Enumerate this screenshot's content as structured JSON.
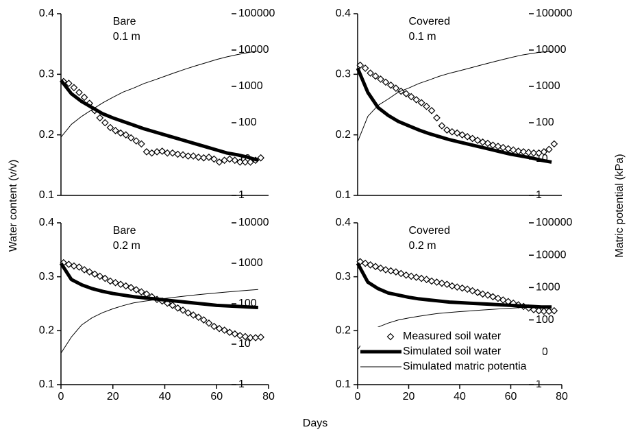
{
  "ylabel": "Water content (v/v)",
  "y2label": "Matric potential (kPa)",
  "xlabel": "Days",
  "chart_data": [
    {
      "type": "line",
      "annotations": [
        "Bare",
        "0.1 m"
      ],
      "xlim": [
        0,
        80
      ],
      "ylim": [
        0.1,
        0.4
      ],
      "yticks": [
        0.1,
        0.2,
        0.3,
        0.4
      ],
      "y2lim": [
        1,
        100000
      ],
      "y2ticks": [
        1,
        10,
        100,
        1000,
        10000,
        100000
      ],
      "y2log": true,
      "series": [
        {
          "color": "#000000",
          "marker": "diamond",
          "x": [
            1,
            3,
            5,
            7,
            9,
            11,
            13,
            15,
            17,
            19,
            21,
            23,
            25,
            27,
            29,
            31,
            33,
            35,
            37,
            39,
            41,
            43,
            45,
            47,
            49,
            51,
            53,
            55,
            57,
            59,
            61,
            63,
            65,
            67,
            69,
            71,
            73,
            75,
            77
          ],
          "values": [
            0.288,
            0.285,
            0.278,
            0.27,
            0.262,
            0.252,
            0.24,
            0.228,
            0.22,
            0.212,
            0.207,
            0.203,
            0.2,
            0.195,
            0.19,
            0.185,
            0.172,
            0.17,
            0.172,
            0.173,
            0.17,
            0.17,
            0.168,
            0.167,
            0.165,
            0.165,
            0.163,
            0.162,
            0.163,
            0.16,
            0.155,
            0.158,
            0.16,
            0.158,
            0.155,
            0.155,
            0.155,
            0.158,
            0.162
          ]
        },
        {
          "color": "#000000",
          "line_width": 5,
          "x": [
            0,
            4,
            8,
            12,
            16,
            20,
            24,
            28,
            32,
            36,
            40,
            44,
            48,
            52,
            56,
            60,
            64,
            68,
            72,
            76
          ],
          "values": [
            0.29,
            0.268,
            0.255,
            0.245,
            0.235,
            0.228,
            0.222,
            0.216,
            0.21,
            0.205,
            0.2,
            0.195,
            0.19,
            0.185,
            0.18,
            0.175,
            0.17,
            0.167,
            0.163,
            0.158
          ]
        },
        {
          "color": "#000000",
          "line_width": 1,
          "axis": "y2",
          "x": [
            0,
            4,
            8,
            12,
            16,
            20,
            24,
            28,
            32,
            36,
            40,
            44,
            48,
            52,
            56,
            60,
            64,
            68,
            72,
            76
          ],
          "values": [
            40,
            90,
            150,
            230,
            350,
            500,
            700,
            900,
            1200,
            1500,
            1900,
            2400,
            3000,
            3700,
            4500,
            5500,
            6500,
            7500,
            8500,
            9500
          ]
        }
      ]
    },
    {
      "type": "line",
      "annotations": [
        "Covered",
        "0.1 m"
      ],
      "xlim": [
        0,
        80
      ],
      "ylim": [
        0.1,
        0.4
      ],
      "yticks": [
        0.1,
        0.2,
        0.3,
        0.4
      ],
      "y2lim": [
        1,
        100000
      ],
      "y2ticks": [
        1,
        10,
        100,
        1000,
        10000,
        100000
      ],
      "y2log": true,
      "series": [
        {
          "color": "#000000",
          "marker": "diamond",
          "x": [
            1,
            3,
            5,
            7,
            9,
            11,
            13,
            15,
            17,
            19,
            21,
            23,
            25,
            27,
            29,
            31,
            33,
            35,
            37,
            39,
            41,
            43,
            45,
            47,
            49,
            51,
            53,
            55,
            57,
            59,
            61,
            63,
            65,
            67,
            69,
            71,
            73,
            75,
            77
          ],
          "values": [
            0.315,
            0.31,
            0.302,
            0.297,
            0.292,
            0.287,
            0.282,
            0.277,
            0.272,
            0.268,
            0.263,
            0.258,
            0.253,
            0.247,
            0.24,
            0.228,
            0.215,
            0.208,
            0.205,
            0.203,
            0.2,
            0.197,
            0.194,
            0.191,
            0.188,
            0.186,
            0.183,
            0.181,
            0.179,
            0.177,
            0.175,
            0.173,
            0.172,
            0.171,
            0.17,
            0.17,
            0.172,
            0.176,
            0.185
          ]
        },
        {
          "color": "#000000",
          "line_width": 5,
          "x": [
            0,
            4,
            8,
            12,
            16,
            20,
            24,
            28,
            32,
            36,
            40,
            44,
            48,
            52,
            56,
            60,
            64,
            68,
            72,
            76
          ],
          "values": [
            0.31,
            0.27,
            0.245,
            0.232,
            0.222,
            0.215,
            0.208,
            0.202,
            0.197,
            0.192,
            0.188,
            0.184,
            0.18,
            0.176,
            0.172,
            0.168,
            0.165,
            0.162,
            0.158,
            0.155
          ]
        },
        {
          "color": "#000000",
          "line_width": 1,
          "axis": "y2",
          "x": [
            0,
            4,
            8,
            12,
            16,
            20,
            24,
            28,
            32,
            36,
            40,
            44,
            48,
            52,
            56,
            60,
            64,
            68,
            72,
            76
          ],
          "values": [
            30,
            150,
            300,
            450,
            700,
            900,
            1200,
            1500,
            1900,
            2300,
            2700,
            3200,
            3800,
            4500,
            5300,
            6200,
            7200,
            8000,
            8800,
            9200
          ]
        }
      ]
    },
    {
      "type": "line",
      "annotations": [
        "Bare",
        "0.2 m"
      ],
      "xlim": [
        0,
        80
      ],
      "xticks": [
        0,
        20,
        40,
        60,
        80
      ],
      "ylim": [
        0.1,
        0.4
      ],
      "yticks": [
        0.1,
        0.2,
        0.3,
        0.4
      ],
      "y2lim": [
        1,
        10000
      ],
      "y2ticks": [
        1,
        10,
        100,
        1000,
        10000
      ],
      "y2log": true,
      "series": [
        {
          "color": "#000000",
          "marker": "diamond",
          "x": [
            1,
            3,
            5,
            7,
            9,
            11,
            13,
            15,
            17,
            19,
            21,
            23,
            25,
            27,
            29,
            31,
            33,
            35,
            37,
            39,
            41,
            43,
            45,
            47,
            49,
            51,
            53,
            55,
            57,
            59,
            61,
            63,
            65,
            67,
            69,
            71,
            73,
            75,
            77
          ],
          "values": [
            0.326,
            0.323,
            0.32,
            0.318,
            0.313,
            0.309,
            0.305,
            0.301,
            0.297,
            0.292,
            0.289,
            0.286,
            0.283,
            0.28,
            0.276,
            0.272,
            0.268,
            0.263,
            0.258,
            0.255,
            0.251,
            0.247,
            0.242,
            0.238,
            0.233,
            0.229,
            0.225,
            0.22,
            0.214,
            0.208,
            0.204,
            0.201,
            0.197,
            0.194,
            0.191,
            0.189,
            0.187,
            0.187,
            0.188
          ]
        },
        {
          "color": "#000000",
          "line_width": 5,
          "x": [
            0,
            4,
            8,
            12,
            16,
            20,
            24,
            28,
            32,
            36,
            40,
            44,
            48,
            52,
            56,
            60,
            64,
            68,
            72,
            76
          ],
          "values": [
            0.325,
            0.295,
            0.285,
            0.278,
            0.273,
            0.269,
            0.266,
            0.263,
            0.261,
            0.259,
            0.257,
            0.255,
            0.253,
            0.251,
            0.249,
            0.247,
            0.246,
            0.245,
            0.244,
            0.243
          ]
        },
        {
          "color": "#000000",
          "line_width": 1,
          "axis": "y2",
          "x": [
            0,
            4,
            8,
            12,
            16,
            20,
            24,
            28,
            32,
            36,
            40,
            44,
            48,
            52,
            56,
            60,
            64,
            68,
            72,
            76
          ],
          "values": [
            6,
            15,
            30,
            45,
            60,
            75,
            90,
            105,
            115,
            125,
            135,
            145,
            155,
            165,
            175,
            185,
            195,
            205,
            215,
            225
          ]
        }
      ]
    },
    {
      "type": "line",
      "annotations": [
        "Covered",
        "0.2 m"
      ],
      "legend": "lower right",
      "xlim": [
        0,
        80
      ],
      "xticks": [
        0,
        20,
        40,
        60,
        80
      ],
      "ylim": [
        0.1,
        0.4
      ],
      "yticks": [
        0.1,
        0.2,
        0.3,
        0.4
      ],
      "y2lim": [
        1,
        100000
      ],
      "y2ticks": [
        1,
        10,
        100,
        1000,
        10000,
        100000
      ],
      "y2log": true,
      "series": [
        {
          "name": "Measured soil water",
          "color": "#000000",
          "marker": "diamond",
          "x": [
            1,
            3,
            5,
            7,
            9,
            11,
            13,
            15,
            17,
            19,
            21,
            23,
            25,
            27,
            29,
            31,
            33,
            35,
            37,
            39,
            41,
            43,
            45,
            47,
            49,
            51,
            53,
            55,
            57,
            59,
            61,
            63,
            65,
            67,
            69,
            71,
            73,
            75,
            77
          ],
          "values": [
            0.328,
            0.325,
            0.322,
            0.319,
            0.316,
            0.313,
            0.311,
            0.309,
            0.306,
            0.303,
            0.301,
            0.299,
            0.297,
            0.295,
            0.292,
            0.29,
            0.288,
            0.286,
            0.283,
            0.281,
            0.279,
            0.277,
            0.274,
            0.271,
            0.268,
            0.266,
            0.263,
            0.26,
            0.257,
            0.254,
            0.251,
            0.248,
            0.245,
            0.242,
            0.239,
            0.237,
            0.236,
            0.236,
            0.237
          ]
        },
        {
          "name": "Simulated soil water",
          "color": "#000000",
          "line_width": 5,
          "x": [
            0,
            4,
            8,
            12,
            16,
            20,
            24,
            28,
            32,
            36,
            40,
            44,
            48,
            52,
            56,
            60,
            64,
            68,
            72,
            76
          ],
          "values": [
            0.325,
            0.29,
            0.278,
            0.27,
            0.266,
            0.262,
            0.259,
            0.257,
            0.255,
            0.253,
            0.252,
            0.251,
            0.25,
            0.249,
            0.248,
            0.247,
            0.246,
            0.245,
            0.244,
            0.244
          ]
        },
        {
          "name": "Simulated matric potentia",
          "color": "#000000",
          "line_width": 1,
          "axis": "y2",
          "x": [
            0,
            4,
            8,
            12,
            16,
            20,
            24,
            28,
            32,
            36,
            40,
            44,
            48,
            52,
            56,
            60,
            64,
            68,
            72,
            76
          ],
          "values": [
            12,
            35,
            60,
            80,
            100,
            115,
            130,
            145,
            160,
            170,
            180,
            190,
            200,
            210,
            220,
            230,
            240,
            250,
            260,
            270
          ]
        }
      ]
    }
  ]
}
